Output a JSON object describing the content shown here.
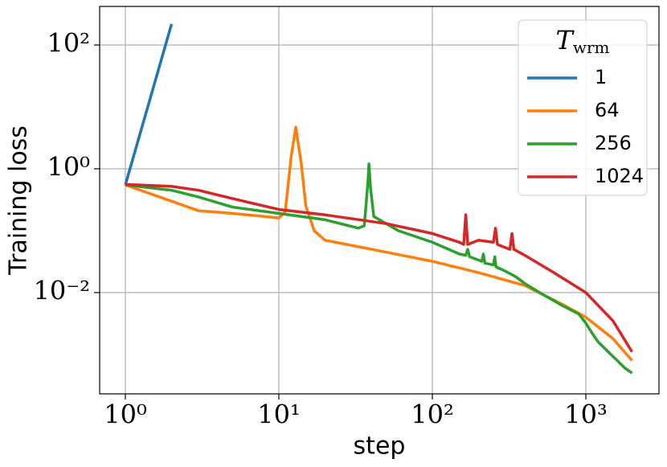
{
  "chart_data": {
    "type": "line",
    "xlabel": "step",
    "ylabel": "Training loss",
    "xscale": "log",
    "yscale": "log",
    "grid": true,
    "legend_loc": "upper right",
    "legend_title": {
      "symbol": "T",
      "subscript": "wrm"
    },
    "xlim": [
      0.68,
      2994
    ],
    "ylim": [
      0.000231,
      420
    ],
    "xticks": [
      {
        "value": 1,
        "label": "10⁰"
      },
      {
        "value": 10,
        "label": "10¹"
      },
      {
        "value": 100,
        "label": "10²"
      },
      {
        "value": 1000,
        "label": "10³"
      }
    ],
    "yticks": [
      {
        "value": 0.01,
        "label": "10⁻²"
      },
      {
        "value": 1,
        "label": "10⁰"
      },
      {
        "value": 100,
        "label": "10²"
      }
    ],
    "series": [
      {
        "name": "1",
        "color": "#1f77b4",
        "x": [
          1,
          2
        ],
        "values": [
          0.55,
          218
        ]
      },
      {
        "name": "64",
        "color": "#ff7f0e",
        "x": [
          1,
          2,
          3,
          5,
          8,
          10,
          11,
          12,
          12.9,
          14,
          15,
          17,
          20,
          50,
          100,
          200,
          400,
          700,
          1000,
          1500,
          2000
        ],
        "values": [
          0.55,
          0.3,
          0.21,
          0.19,
          0.17,
          0.16,
          0.2,
          1.5,
          4.7,
          1.2,
          0.25,
          0.1,
          0.07,
          0.045,
          0.032,
          0.021,
          0.013,
          0.0065,
          0.004,
          0.0018,
          0.0008
        ]
      },
      {
        "name": "256",
        "color": "#2ca02c",
        "x": [
          1,
          2,
          3,
          5,
          10,
          20,
          33,
          36,
          38,
          38.6,
          39.5,
          41.5,
          60,
          100,
          150,
          165,
          170,
          175,
          210,
          215,
          220,
          250,
          255,
          260,
          300,
          350,
          400,
          500,
          700,
          900,
          1000,
          1100,
          1200,
          1400,
          1600,
          1800,
          2000
        ],
        "values": [
          0.55,
          0.45,
          0.35,
          0.24,
          0.19,
          0.15,
          0.11,
          0.12,
          0.6,
          1.2,
          0.5,
          0.17,
          0.1,
          0.065,
          0.042,
          0.04,
          0.05,
          0.038,
          0.032,
          0.042,
          0.03,
          0.028,
          0.038,
          0.026,
          0.022,
          0.018,
          0.014,
          0.01,
          0.0062,
          0.0045,
          0.0032,
          0.0022,
          0.0016,
          0.0011,
          0.0008,
          0.0006,
          0.0005
        ]
      },
      {
        "name": "1024",
        "color": "#d62728",
        "x": [
          1,
          2,
          3,
          5,
          10,
          20,
          50,
          100,
          150,
          160,
          165,
          170,
          200,
          250,
          258,
          265,
          320,
          330,
          340,
          400,
          600,
          1000,
          1500,
          2000
        ],
        "values": [
          0.56,
          0.52,
          0.45,
          0.33,
          0.22,
          0.18,
          0.13,
          0.09,
          0.065,
          0.06,
          0.18,
          0.06,
          0.07,
          0.065,
          0.11,
          0.06,
          0.05,
          0.09,
          0.05,
          0.04,
          0.022,
          0.01,
          0.0035,
          0.0011
        ]
      }
    ]
  }
}
